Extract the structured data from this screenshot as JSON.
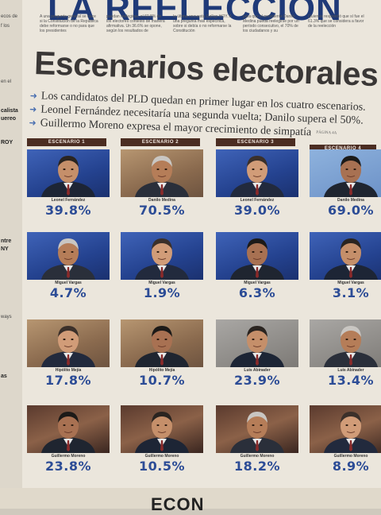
{
  "left_strip": [
    {
      "text": "ecos de",
      "big": false
    },
    {
      "text": "f los",
      "big": false
    },
    {
      "text": "en el",
      "big": false
    },
    {
      "text": "calista",
      "big": true
    },
    {
      "text": "uereo",
      "big": true
    },
    {
      "text": "ROY",
      "big": true
    },
    {
      "text": "ntre",
      "big": true
    },
    {
      "text": "NY",
      "big": true
    },
    {
      "text": "ways",
      "big": false
    },
    {
      "text": "as",
      "big": true
    }
  ],
  "masthead": "LA REELECCIÓN",
  "intro_columns": [
    "A una pregunta general se hace si la Constitución de la República debe reformarse o no para que los presidentes",
    "puedan reelegirse, el 60.8% de los electores contestó de manera afirmativa. Un 36.6% se opone, según los resultados de",
    "la última encuesta Gallup-HOY. A una pregunta más específica, sobre si debía o no reformarse la Constitución",
    "para que el presidente Danilo Medina pueda reelegirse por un período consecutivo, el 70% de los ciudadanos y su",
    "Quienes respondió que sí fue el 61.3% que se considera a favor de la reelección"
  ],
  "headline": "Escenarios electorales",
  "bullets": [
    "Los candidatos del PLD quedan en primer lugar en los cuatro escenarios.",
    "Leonel Fernández necesitaría una segunda vuelta; Danilo supera el 50%.",
    "Guillermo Moreno expresa el mayor crecimiento de simpatía"
  ],
  "credit": "PÁGINA 4A",
  "scenarios": [
    {
      "label": "ESCENARIO 1",
      "candidates": [
        {
          "name": "Leonel Fernández",
          "pct": "39.8%",
          "bg": "blue",
          "icon": "leonel-fernandez-photo"
        },
        {
          "name": "Miguel Vargas",
          "pct": "4.7%",
          "bg": "blue",
          "icon": "miguel-vargas-photo"
        },
        {
          "name": "Hipólito Mejía",
          "pct": "17.8%",
          "bg": "warm",
          "icon": "hipolito-mejia-photo"
        },
        {
          "name": "Guillermo Moreno",
          "pct": "23.8%",
          "bg": "stage",
          "icon": "guillermo-moreno-photo"
        }
      ]
    },
    {
      "label": "ESCENARIO 2",
      "candidates": [
        {
          "name": "Danilo Medina",
          "pct": "70.5%",
          "bg": "warm",
          "icon": "danilo-medina-photo"
        },
        {
          "name": "Miguel Vargas",
          "pct": "1.9%",
          "bg": "blue",
          "icon": "miguel-vargas-photo"
        },
        {
          "name": "Hipólito Mejía",
          "pct": "10.7%",
          "bg": "warm",
          "icon": "hipolito-mejia-photo"
        },
        {
          "name": "Guillermo Moreno",
          "pct": "10.5%",
          "bg": "stage",
          "icon": "guillermo-moreno-photo"
        }
      ]
    },
    {
      "label": "ESCENARIO 3",
      "candidates": [
        {
          "name": "Leonel Fernández",
          "pct": "39.0%",
          "bg": "blue",
          "icon": "leonel-fernandez-photo"
        },
        {
          "name": "Miguel Vargas",
          "pct": "6.3%",
          "bg": "blue",
          "icon": "miguel-vargas-photo"
        },
        {
          "name": "Luis Abinader",
          "pct": "23.9%",
          "bg": "grey",
          "icon": "luis-abinader-photo"
        },
        {
          "name": "Guillermo Moreno",
          "pct": "18.2%",
          "bg": "stage",
          "icon": "guillermo-moreno-photo"
        }
      ]
    },
    {
      "label": "ESCENARIO 4",
      "candidates": [
        {
          "name": "Danilo Medina",
          "pct": "69.0%",
          "bg": "lightblue",
          "icon": "danilo-medina-photo"
        },
        {
          "name": "Miguel Vargas",
          "pct": "3.1%",
          "bg": "blue",
          "icon": "miguel-vargas-photo"
        },
        {
          "name": "Luis Abinader",
          "pct": "13.4%",
          "bg": "grey",
          "icon": "luis-abinader-photo"
        },
        {
          "name": "Guillermo Moreno",
          "pct": "8.9%",
          "bg": "stage",
          "icon": "guillermo-moreno-photo"
        }
      ]
    }
  ],
  "bottom_text": "ECON",
  "colors": {
    "percent": "#2c4c96",
    "header_bar": "#4b2d22",
    "headline": "#3a3736",
    "masthead": "#1f3a78",
    "bullet_arrow": "#4a6fb0"
  }
}
